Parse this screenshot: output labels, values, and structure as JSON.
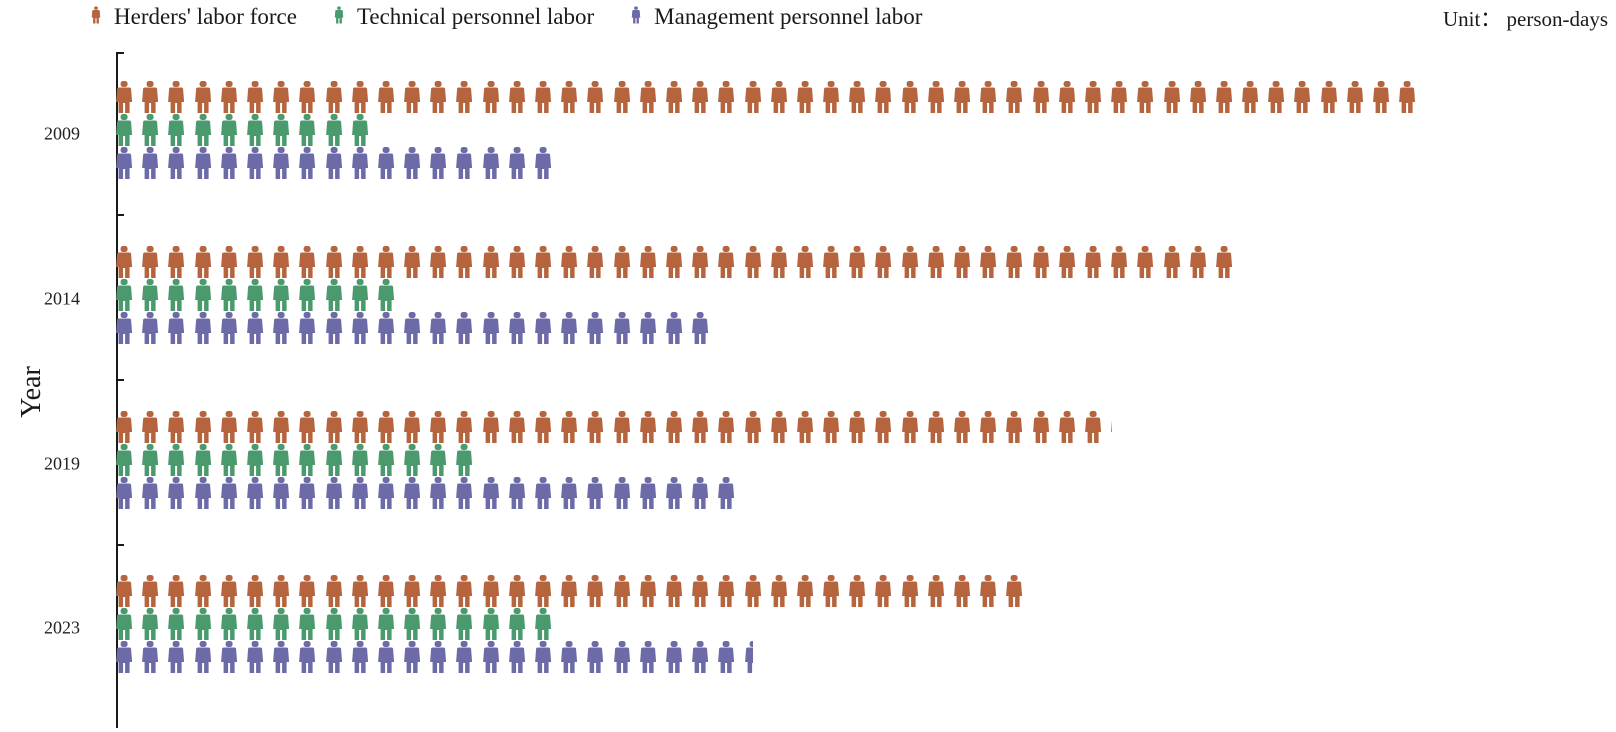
{
  "legend": {
    "items": [
      {
        "label": "Herders' labor force",
        "color": "#b5643e"
      },
      {
        "label": "Technical personnel labor",
        "color": "#4a9a6e"
      },
      {
        "label": "Management personnel labor",
        "color": "#6d6aa8"
      }
    ],
    "unit": "Unit： person-days"
  },
  "axis": {
    "ylabel": "Year",
    "categories": [
      "2009",
      "2014",
      "2019",
      "2023"
    ]
  },
  "chart_data": {
    "type": "bar",
    "subtype": "pictograph (horizontal, grouped)",
    "title": "",
    "xlabel": "",
    "ylabel": "Year",
    "unit": "person-days",
    "categories": [
      "2009",
      "2014",
      "2019",
      "2023"
    ],
    "series": [
      {
        "name": "Herders' labor force",
        "color": "#b5643e",
        "values": [
          50,
          43,
          38.2,
          35.1
        ]
      },
      {
        "name": "Technical personnel labor",
        "color": "#4a9a6e",
        "values": [
          10,
          11,
          14.2,
          17
        ]
      },
      {
        "name": "Management personnel labor",
        "color": "#6d6aa8",
        "values": [
          17,
          23,
          24,
          24.5
        ]
      }
    ],
    "notes": "Values expressed in icon units (one person icon each); partial icons indicate fractional amounts.",
    "legend_position": "top",
    "grid": false
  }
}
